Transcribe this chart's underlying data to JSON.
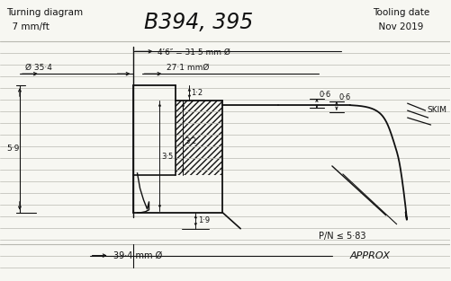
{
  "bg_color": "#f7f7f2",
  "line_color": "#111111",
  "title_text": "B394, 395",
  "top_left_line1": "Turning diagram",
  "top_left_line2": "  7 mm/ft",
  "top_right_line1": "Tooling date",
  "top_right_line2": "  Nov 2019",
  "dim_31_5": "4ʹ6″ = 31·5 mm Ø",
  "dim_27_1": "27·1 mmØ",
  "dim_0_6a": "0·6",
  "dim_0_6b": "0·6",
  "dim_1_2": "1·2",
  "dim_3_5": "3·5",
  "dim_3_2": "3·2",
  "dim_1_9": "1·9",
  "dim_5_9": "5·9",
  "dim_35_4": "Ø 35·4",
  "dim_pin": "P/N ≤ 5·83",
  "dim_39_4": "39·4 mm Ø",
  "approx": "APPROX",
  "skim": "SKIM",
  "ruled_line_color": "#b8b8b0"
}
